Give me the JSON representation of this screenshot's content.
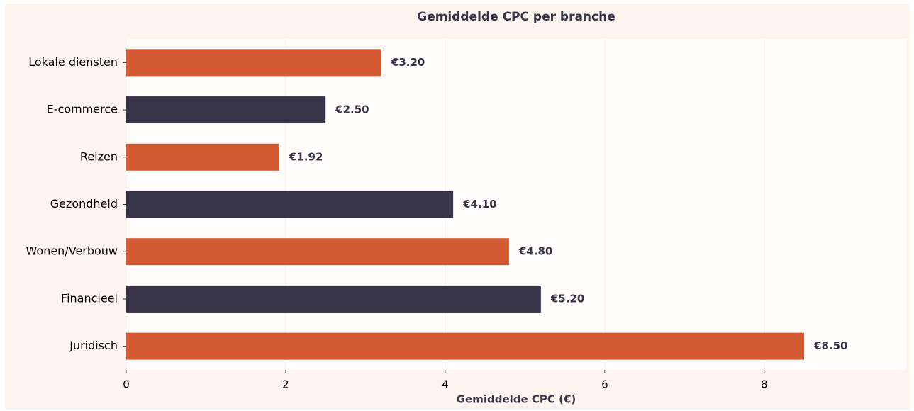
{
  "chart_data": {
    "type": "bar",
    "orientation": "horizontal",
    "title": "Gemiddelde CPC per branche",
    "x_label": "Gemiddelde CPC (€)",
    "categories": [
      "Lokale diensten",
      "E-commerce",
      "Reizen",
      "Gezondheid",
      "Wonen/Verbouw",
      "Financieel",
      "Juridisch"
    ],
    "values": [
      3.2,
      2.5,
      1.92,
      4.1,
      4.8,
      5.2,
      8.5
    ],
    "value_labels": [
      "€3.20",
      "€2.50",
      "€1.92",
      "€4.10",
      "€4.80",
      "€5.20",
      "€8.50"
    ],
    "colors": [
      "#d45a33",
      "#383548",
      "#d45a33",
      "#383548",
      "#d45a33",
      "#383548",
      "#d45a33"
    ],
    "xlim": [
      0,
      9.78
    ],
    "xticks": [
      0,
      2,
      4,
      6,
      8
    ],
    "grid": true
  }
}
